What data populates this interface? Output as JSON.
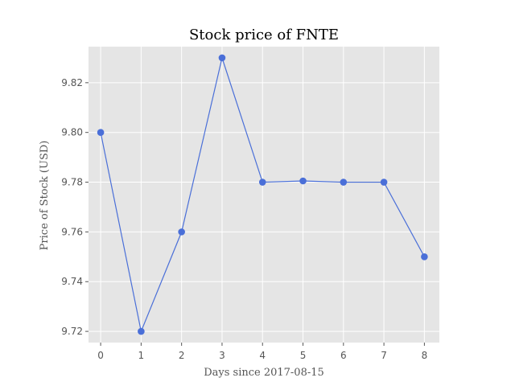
{
  "chart_data": {
    "type": "line",
    "title": "Stock price of FNTE",
    "xlabel": "Days since 2017-08-15",
    "ylabel": "Price of Stock (USD)",
    "x": [
      0,
      1,
      2,
      3,
      4,
      5,
      6,
      7,
      8
    ],
    "series": [
      {
        "values": [
          9.8,
          9.72,
          9.76,
          9.83,
          9.78,
          9.7805,
          9.78,
          9.78,
          9.75
        ]
      }
    ],
    "xlim": [
      -0.3,
      8.37
    ],
    "ylim": [
      9.7155,
      9.8345
    ],
    "xticks": [
      0,
      1,
      2,
      3,
      4,
      5,
      6,
      7,
      8
    ],
    "xtick_labels": [
      "0",
      "1",
      "2",
      "3",
      "4",
      "5",
      "6",
      "7",
      "8"
    ],
    "yticks": [
      9.72,
      9.74,
      9.76,
      9.78,
      9.8,
      9.82
    ],
    "ytick_labels": [
      "9.72",
      "9.74",
      "9.76",
      "9.78",
      "9.80",
      "9.82"
    ],
    "grid": true,
    "legend": false,
    "colors": {
      "line": "#4a6fd8",
      "marker": "#4a6fd8",
      "plot_background": "#e5e5e5",
      "grid": "#ffffff"
    }
  }
}
